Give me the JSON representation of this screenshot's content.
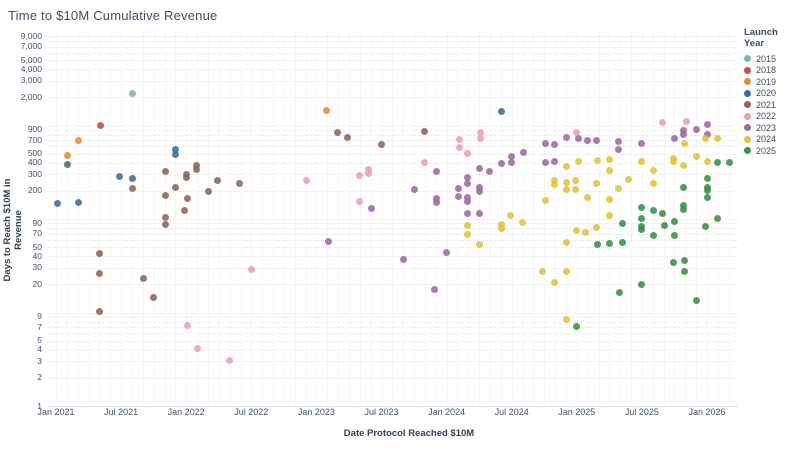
{
  "page": {
    "title": "Time to $10M Cumulative Revenue"
  },
  "chart_data": {
    "type": "scatter",
    "title": "Time to $10M Cumulative Revenue",
    "xlabel": "Date Protocol Reached $10M",
    "ylabel": "Days to Reach $10M in Revenue",
    "grid": "dotted",
    "x_axis": {
      "scale": "time",
      "range": [
        2020.94,
        2026.24
      ],
      "ticks": [
        {
          "label": "Jan 2021",
          "value": 2021.0
        },
        {
          "label": "Jul 2021",
          "value": 2021.5
        },
        {
          "label": "Jan 2022",
          "value": 2022.0
        },
        {
          "label": "Jul 2022",
          "value": 2022.5
        },
        {
          "label": "Jan 2023",
          "value": 2023.0
        },
        {
          "label": "Jul 2023",
          "value": 2023.5
        },
        {
          "label": "Jan 2024",
          "value": 2024.0
        },
        {
          "label": "Jul 2024",
          "value": 2024.5
        },
        {
          "label": "Jan 2025",
          "value": 2025.0
        },
        {
          "label": "Jul 2025",
          "value": 2025.5
        },
        {
          "label": "Jan 2026",
          "value": 2026.0
        }
      ]
    },
    "y_axis": {
      "scale": "log",
      "range": [
        1,
        10000
      ],
      "ticks": [
        {
          "label": "9,000",
          "value": 9000
        },
        {
          "label": "7,000",
          "value": 7000
        },
        {
          "label": "5,000",
          "value": 5000
        },
        {
          "label": "4,000",
          "value": 4000
        },
        {
          "label": "3,000",
          "value": 3000
        },
        {
          "label": "2,000",
          "value": 2000
        },
        {
          "label": "900",
          "value": 900
        },
        {
          "label": "700",
          "value": 700
        },
        {
          "label": "500",
          "value": 500
        },
        {
          "label": "400",
          "value": 400
        },
        {
          "label": "300",
          "value": 300
        },
        {
          "label": "200",
          "value": 200
        },
        {
          "label": "90",
          "value": 90
        },
        {
          "label": "70",
          "value": 70
        },
        {
          "label": "50",
          "value": 50
        },
        {
          "label": "40",
          "value": 40
        },
        {
          "label": "30",
          "value": 30
        },
        {
          "label": "20",
          "value": 20
        },
        {
          "label": "9",
          "value": 9
        },
        {
          "label": "7",
          "value": 7
        },
        {
          "label": "5",
          "value": 5
        },
        {
          "label": "4",
          "value": 4
        },
        {
          "label": "3",
          "value": 3
        },
        {
          "label": "2",
          "value": 2
        },
        {
          "label": "1",
          "value": 1
        }
      ]
    },
    "legend": {
      "title": "Launch Year",
      "position": "top-right"
    },
    "series": [
      {
        "name": "2015",
        "color": "#72b7b2",
        "points": [
          [
            2021.59,
            2200
          ]
        ]
      },
      {
        "name": "2018",
        "color": "#c0504a",
        "points": [
          [
            2021.34,
            1000
          ]
        ]
      },
      {
        "name": "2019",
        "color": "#df8d3c",
        "points": [
          [
            2021.09,
            480
          ],
          [
            2021.17,
            690
          ],
          [
            2023.08,
            1450
          ]
        ]
      },
      {
        "name": "2020",
        "color": "#3f6e96",
        "points": [
          [
            2021.01,
            145
          ],
          [
            2021.09,
            385
          ],
          [
            2021.17,
            152
          ],
          [
            2021.49,
            285
          ],
          [
            2021.59,
            270
          ],
          [
            2021.92,
            555
          ],
          [
            2021.92,
            490
          ],
          [
            2024.42,
            1400
          ]
        ]
      },
      {
        "name": "2021",
        "color": "#8a675c",
        "points": [
          [
            2021.33,
            43
          ],
          [
            2021.33,
            26
          ],
          [
            2021.33,
            10.3
          ],
          [
            2021.59,
            213
          ],
          [
            2021.67,
            23
          ],
          [
            2021.75,
            14.5
          ],
          [
            2021.84,
            325
          ],
          [
            2021.84,
            178
          ],
          [
            2021.84,
            104
          ],
          [
            2021.84,
            88
          ],
          [
            2021.92,
            219
          ],
          [
            2022.0,
            299
          ],
          [
            2022.0,
            277
          ],
          [
            2022.01,
            167
          ],
          [
            2021.99,
            124
          ],
          [
            2022.08,
            374
          ],
          [
            2022.08,
            340
          ],
          [
            2022.17,
            198
          ],
          [
            2022.24,
            260
          ],
          [
            2022.41,
            240
          ],
          [
            2023.16,
            845
          ],
          [
            2023.24,
            745
          ],
          [
            2023.5,
            630
          ],
          [
            2023.83,
            860
          ]
        ]
      },
      {
        "name": "2022",
        "color": "#e8a2b4",
        "points": [
          [
            2022.01,
            7.3
          ],
          [
            2022.09,
            4.1
          ],
          [
            2022.33,
            3.1
          ],
          [
            2022.5,
            29
          ],
          [
            2022.92,
            260
          ],
          [
            2023.33,
            292
          ],
          [
            2023.4,
            340
          ],
          [
            2023.4,
            306
          ],
          [
            2023.33,
            155
          ],
          [
            2023.83,
            400
          ],
          [
            2024.1,
            710
          ],
          [
            2024.1,
            580
          ],
          [
            2024.16,
            500
          ],
          [
            2024.26,
            845
          ],
          [
            2024.26,
            730
          ],
          [
            2025.0,
            845
          ],
          [
            2025.66,
            1080
          ],
          [
            2025.84,
            1100
          ]
        ]
      },
      {
        "name": "2023",
        "color": "#9c6ba0",
        "points": [
          [
            2023.09,
            58
          ],
          [
            2023.42,
            131
          ],
          [
            2023.67,
            37
          ],
          [
            2023.75,
            207
          ],
          [
            2023.91,
            17.7
          ],
          [
            2023.92,
            323
          ],
          [
            2023.92,
            167
          ],
          [
            2023.92,
            151
          ],
          [
            2024.0,
            44
          ],
          [
            2024.09,
            213
          ],
          [
            2024.09,
            175
          ],
          [
            2024.16,
            280
          ],
          [
            2024.16,
            240
          ],
          [
            2024.16,
            170
          ],
          [
            2024.16,
            155
          ],
          [
            2024.16,
            115
          ],
          [
            2024.25,
            350
          ],
          [
            2024.25,
            218
          ],
          [
            2024.25,
            197
          ],
          [
            2024.25,
            115
          ],
          [
            2024.33,
            323
          ],
          [
            2024.42,
            395
          ],
          [
            2024.5,
            470
          ],
          [
            2024.5,
            405
          ],
          [
            2024.59,
            520
          ],
          [
            2024.76,
            650
          ],
          [
            2024.76,
            405
          ],
          [
            2024.83,
            630
          ],
          [
            2024.83,
            415
          ],
          [
            2024.92,
            750
          ],
          [
            2025.01,
            730
          ],
          [
            2025.08,
            690
          ],
          [
            2025.15,
            690
          ],
          [
            2025.32,
            675
          ],
          [
            2025.32,
            555
          ],
          [
            2025.5,
            650
          ],
          [
            2025.75,
            730
          ],
          [
            2025.82,
            885
          ],
          [
            2025.82,
            800
          ],
          [
            2025.92,
            905
          ],
          [
            2026.0,
            1020
          ],
          [
            2026.0,
            800
          ]
        ]
      },
      {
        "name": "2024",
        "color": "#e3c23e",
        "points": [
          [
            2024.16,
            86
          ],
          [
            2024.16,
            69
          ],
          [
            2024.25,
            54
          ],
          [
            2024.42,
            88
          ],
          [
            2024.42,
            79
          ],
          [
            2024.49,
            110
          ],
          [
            2024.58,
            92
          ],
          [
            2024.74,
            27.5
          ],
          [
            2024.76,
            158
          ],
          [
            2024.83,
            258
          ],
          [
            2024.83,
            235
          ],
          [
            2024.83,
            21
          ],
          [
            2024.92,
            365
          ],
          [
            2024.92,
            245
          ],
          [
            2024.92,
            207
          ],
          [
            2024.92,
            56
          ],
          [
            2024.92,
            27.5
          ],
          [
            2024.92,
            8.5
          ],
          [
            2024.99,
            258
          ],
          [
            2024.99,
            207
          ],
          [
            2025.0,
            76
          ],
          [
            2025.01,
            415
          ],
          [
            2025.07,
            72
          ],
          [
            2025.08,
            170
          ],
          [
            2025.15,
            240
          ],
          [
            2025.15,
            81
          ],
          [
            2025.16,
            420
          ],
          [
            2025.25,
            435
          ],
          [
            2025.25,
            330
          ],
          [
            2025.25,
            162
          ],
          [
            2025.25,
            110
          ],
          [
            2025.32,
            213
          ],
          [
            2025.4,
            265
          ],
          [
            2025.5,
            415
          ],
          [
            2025.59,
            330
          ],
          [
            2025.59,
            240
          ],
          [
            2025.74,
            440
          ],
          [
            2025.74,
            415
          ],
          [
            2025.82,
            375
          ],
          [
            2025.83,
            650
          ],
          [
            2025.92,
            465
          ],
          [
            2025.99,
            730
          ],
          [
            2026.0,
            415
          ],
          [
            2026.08,
            730
          ]
        ]
      },
      {
        "name": "2025",
        "color": "#3a9048",
        "points": [
          [
            2025.0,
            7.1
          ],
          [
            2025.16,
            54
          ],
          [
            2025.25,
            55
          ],
          [
            2025.33,
            16.4
          ],
          [
            2025.35,
            56
          ],
          [
            2025.35,
            90
          ],
          [
            2025.5,
            20
          ],
          [
            2025.5,
            133
          ],
          [
            2025.5,
            102
          ],
          [
            2025.5,
            84
          ],
          [
            2025.5,
            78
          ],
          [
            2025.59,
            123
          ],
          [
            2025.59,
            67
          ],
          [
            2025.66,
            115
          ],
          [
            2025.67,
            86
          ],
          [
            2025.74,
            34.5
          ],
          [
            2025.75,
            94
          ],
          [
            2025.75,
            67
          ],
          [
            2025.82,
            218
          ],
          [
            2025.82,
            140
          ],
          [
            2025.82,
            126
          ],
          [
            2025.83,
            36
          ],
          [
            2025.83,
            27.5
          ],
          [
            2025.92,
            13.5
          ],
          [
            2025.99,
            83
          ],
          [
            2026.0,
            272
          ],
          [
            2026.0,
            218
          ],
          [
            2026.0,
            202
          ],
          [
            2026.0,
            170
          ],
          [
            2026.08,
            400
          ],
          [
            2026.08,
            102
          ],
          [
            2026.17,
            400
          ]
        ]
      }
    ]
  }
}
